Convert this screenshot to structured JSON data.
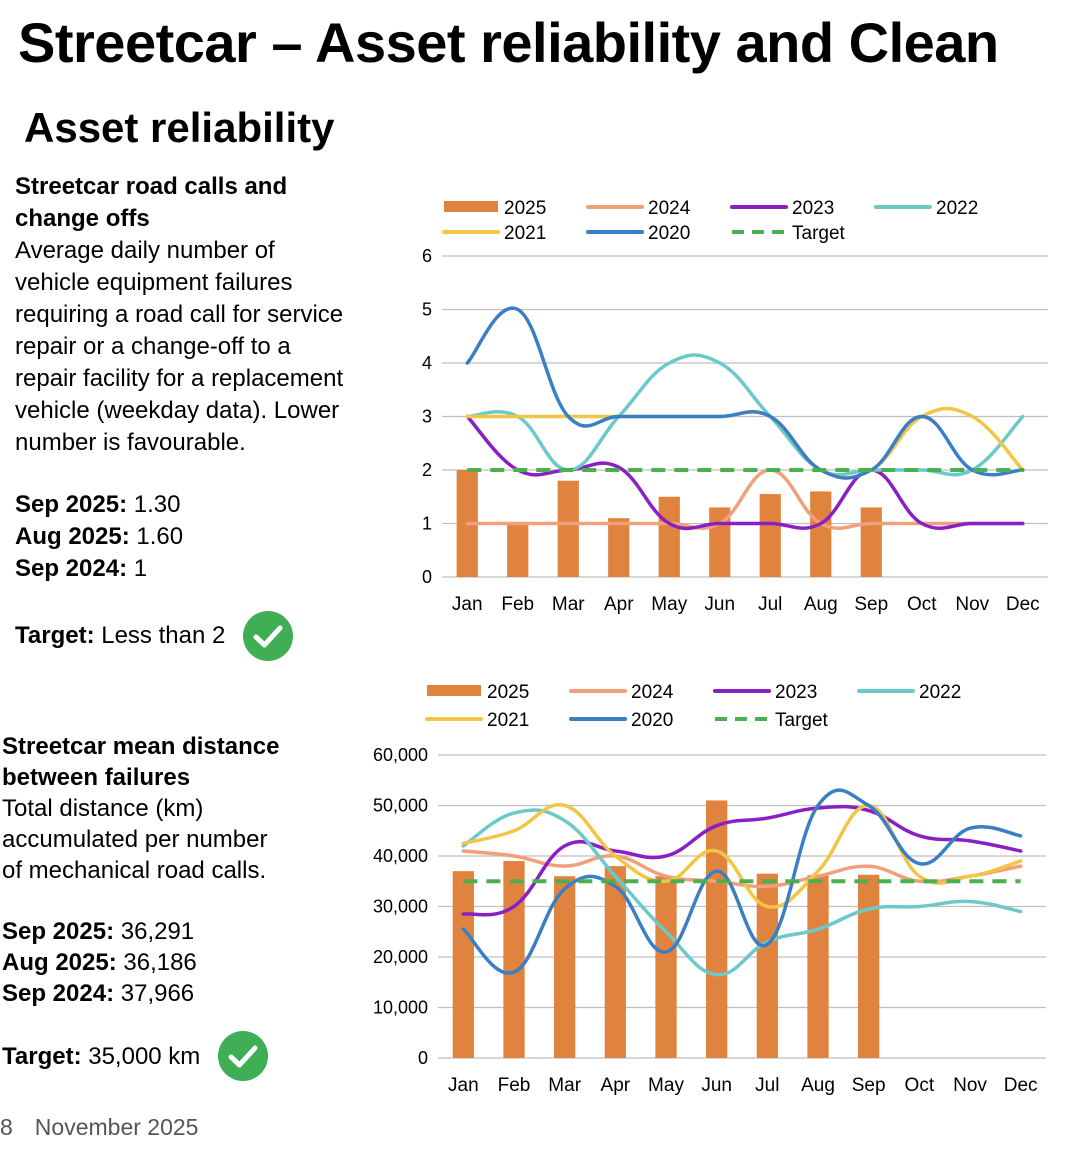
{
  "page": {
    "title": "Streetcar – Asset reliability and Clean",
    "subtitle": "Asset reliability",
    "footer_page": "8",
    "footer_date": "November 2025"
  },
  "panel1": {
    "title_line1": "Streetcar road calls and",
    "title_line2": "change offs",
    "desc_lines": [
      "Average daily number of",
      "vehicle equipment failures",
      "requiring a road call for service",
      "repair or a change-off to a",
      "repair facility for a replacement",
      "vehicle (weekday data). Lower",
      "number is favourable."
    ],
    "stats": [
      {
        "label": "Sep 2025:",
        "value": "1.30"
      },
      {
        "label": "Aug 2025:",
        "value": "1.60"
      },
      {
        "label": "Sep 2024:",
        "value": "1"
      }
    ],
    "target_label": "Target:",
    "target_value": "Less than 2"
  },
  "panel2": {
    "title_line1": "Streetcar mean distance",
    "title_line2": "between failures",
    "desc_lines": [
      "Total distance (km)",
      "accumulated per number",
      "of mechanical road calls."
    ],
    "stats": [
      {
        "label": "Sep 2025:",
        "value": "36,291"
      },
      {
        "label": "Aug 2025:",
        "value": "36,186"
      },
      {
        "label": "Sep 2024:",
        "value": "37,966"
      }
    ],
    "target_label": "Target:",
    "target_value": "35,000 km"
  },
  "colors": {
    "s2025": "#e0833f",
    "s2024": "#f0a07a",
    "s2023": "#8a1fc4",
    "s2022": "#6cc9c9",
    "s2021": "#f2c544",
    "s2020": "#3a7fc4",
    "target": "#4caf50",
    "grid": "#bfbfbf",
    "check": "#3fae55"
  },
  "chart_data": [
    {
      "type": "bar",
      "title": "Streetcar road calls and change offs",
      "categories": [
        "Jan",
        "Feb",
        "Mar",
        "Apr",
        "May",
        "Jun",
        "Jul",
        "Aug",
        "Sep",
        "Oct",
        "Nov",
        "Dec"
      ],
      "ylim": [
        0,
        6
      ],
      "yticks": [
        0,
        1,
        2,
        3,
        4,
        5,
        6
      ],
      "ytick_labels": [
        "0",
        "1",
        "2",
        "3",
        "4",
        "5",
        "6"
      ],
      "legend_position": "top",
      "bars": {
        "name": "2025",
        "values": [
          2.0,
          1.0,
          1.8,
          1.1,
          1.5,
          1.3,
          1.55,
          1.6,
          1.3
        ]
      },
      "lines": [
        {
          "name": "2024",
          "values": [
            1,
            1,
            1,
            1,
            1,
            1,
            2,
            1,
            1,
            1,
            1,
            1
          ]
        },
        {
          "name": "2023",
          "values": [
            3,
            2,
            2,
            2.05,
            1,
            1,
            1,
            1,
            2,
            1,
            1,
            1
          ]
        },
        {
          "name": "2022",
          "values": [
            3,
            3,
            2,
            3,
            4,
            4,
            3,
            2,
            2,
            2,
            2,
            3
          ]
        },
        {
          "name": "2021",
          "values": [
            3,
            3,
            3,
            3,
            3,
            3,
            3,
            2,
            2,
            3,
            3,
            2
          ]
        },
        {
          "name": "2020",
          "values": [
            4,
            5,
            3,
            3,
            3,
            3,
            3,
            2,
            2,
            3,
            2,
            2
          ]
        }
      ],
      "target": {
        "name": "Target",
        "value": 2
      }
    },
    {
      "type": "bar",
      "title": "Streetcar mean distance between failures",
      "categories": [
        "Jan",
        "Feb",
        "Mar",
        "Apr",
        "May",
        "Jun",
        "Jul",
        "Aug",
        "Sep",
        "Oct",
        "Nov",
        "Dec"
      ],
      "ylim": [
        0,
        60000
      ],
      "yticks": [
        0,
        10000,
        20000,
        30000,
        40000,
        50000,
        60000
      ],
      "ytick_labels": [
        "0",
        "10,000",
        "20,000",
        "30,000",
        "40,000",
        "50,000",
        "60,000"
      ],
      "legend_position": "top",
      "bars": {
        "name": "2025",
        "values": [
          37000,
          39000,
          36000,
          38000,
          36000,
          51000,
          36500,
          36186,
          36291
        ]
      },
      "lines": [
        {
          "name": "2024",
          "values": [
            41000,
            40000,
            38000,
            40000,
            36000,
            35000,
            34000,
            36000,
            37966,
            35000,
            36000,
            38000
          ]
        },
        {
          "name": "2023",
          "values": [
            28500,
            30000,
            42000,
            41000,
            40000,
            46000,
            47500,
            49500,
            49000,
            44000,
            43000,
            41000
          ]
        },
        {
          "name": "2022",
          "values": [
            42000,
            48500,
            47000,
            36000,
            25000,
            16500,
            23000,
            25500,
            29500,
            30000,
            31000,
            29000
          ]
        },
        {
          "name": "2021",
          "values": [
            42500,
            45000,
            50000,
            40000,
            35000,
            41000,
            30000,
            37000,
            50000,
            36000,
            36000,
            39000
          ]
        },
        {
          "name": "2020",
          "values": [
            25500,
            17000,
            33500,
            34000,
            21000,
            37000,
            22500,
            50000,
            50000,
            38500,
            45500,
            44000
          ]
        }
      ],
      "target": {
        "name": "Target",
        "value": 35000
      }
    }
  ]
}
